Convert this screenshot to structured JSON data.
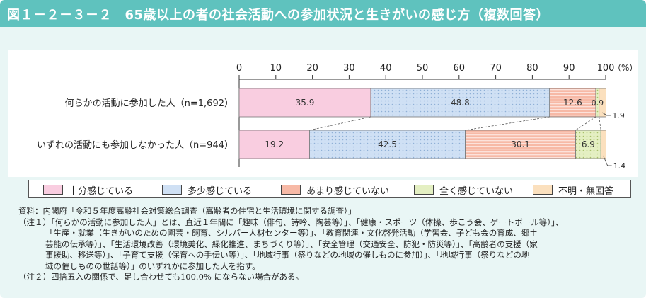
{
  "title": "図１－２－３－２　65歳以上の者の社会活動への参加状況と生きがいの感じ方（複数回答）",
  "chart_data": {
    "type": "bar",
    "orientation": "horizontal",
    "stacked": true,
    "axis_unit": "（%）",
    "xlim": [
      0,
      100
    ],
    "x_ticks": [
      0,
      10,
      20,
      30,
      40,
      50,
      60,
      70,
      80,
      90,
      100
    ],
    "categories": [
      "何らかの活動に参加した人（n=1,692）",
      "いずれの活動にも参加しなかった人（n=944）"
    ],
    "series": [
      {
        "name": "十分感じている",
        "values": [
          35.9,
          19.2
        ],
        "labels": [
          "35.9",
          "19.2"
        ]
      },
      {
        "name": "多少感じている",
        "values": [
          48.8,
          42.5
        ],
        "labels": [
          "48.8",
          "42.5"
        ]
      },
      {
        "name": "あまり感じていない",
        "values": [
          12.6,
          30.1
        ],
        "labels": [
          "12.6",
          "30.1"
        ]
      },
      {
        "name": "全く感じていない",
        "values": [
          0.9,
          6.9
        ],
        "labels": [
          "0.9",
          "6.9"
        ]
      },
      {
        "name": "不明・無回答",
        "values": [
          1.9,
          1.4
        ],
        "labels": [
          "1.9",
          "1.4"
        ]
      }
    ],
    "legend_position": "bottom"
  },
  "colors": {
    "pink": "#f9cde0",
    "blue": "#cfe0f4",
    "red": "#f7b9a6",
    "green": "#e4efc2",
    "peach": "#fbe0be",
    "title_bg": "#5fc2be",
    "frame_bg": "#e9f6f5"
  },
  "notes": [
    "資料：内閣府「令和５年度高齢社会対策総合調査（高齢者の住宅と生活環境に関する調査）」",
    "（注１）「何らかの活動に参加した人」とは、直近１年間に「趣味（俳句、詩吟、陶芸等）」、「健康・スポーツ（体操、歩こう会、ゲートボール等）」、",
    "「生産・就業（生きがいのための園芸・飼育、シルバー人材センター等）」、「教育関連・文化啓発活動（学習会、子ども会の育成、郷土",
    "芸能の伝承等）」、「生活環境改善（環境美化、緑化推進、まちづくり等）」、「安全管理（交通安全、防犯・防災等）」、「高齢者の支援（家",
    "事援助、移送等）」、「子育て支援（保育への手伝い等）」、「地域行事（祭りなどの地域の催しものに参加）」、「地域行事（祭りなどの地",
    "域の催しものの世話等）」のいずれかに参加した人を指す。",
    "（注２）四捨五入の関係で、足し合わせても100.0% にならない場合がある。"
  ]
}
